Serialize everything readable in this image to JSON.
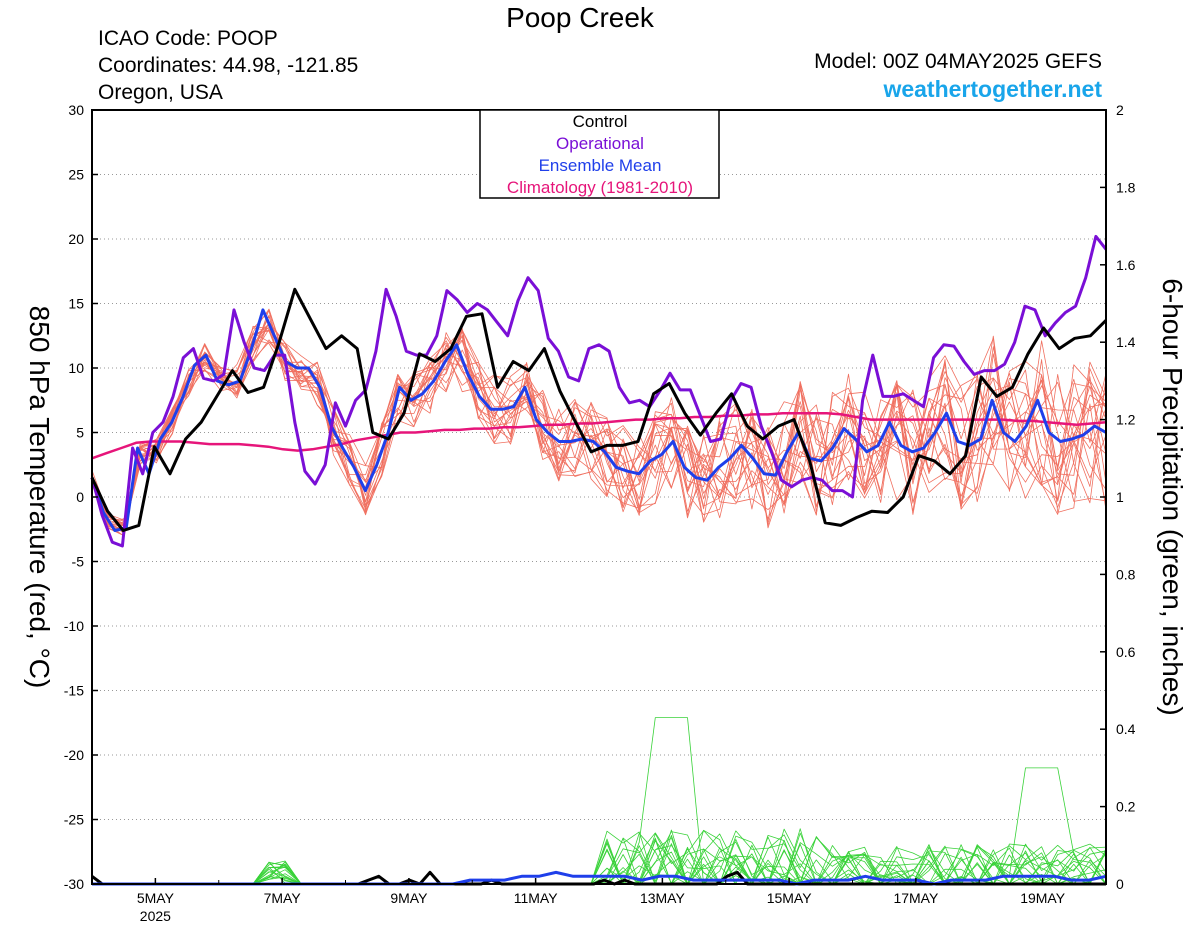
{
  "header": {
    "title": "Poop Creek",
    "icao": "ICAO Code: POOP",
    "coordinates": "Coordinates: 44.98, -121.85",
    "region": "Oregon, USA",
    "model": "Model: 00Z 04MAY2025 GEFS",
    "site": "weathertogether.net"
  },
  "chart_data": {
    "type": "line",
    "xlabel_year": "2025",
    "x_ticks": [
      "5MAY",
      "7MAY",
      "9MAY",
      "11MAY",
      "13MAY",
      "15MAY",
      "17MAY",
      "19MAY"
    ],
    "x_range_days": [
      4.0,
      20.0
    ],
    "left_axis": {
      "label": "850 hPa Temperature (red, °C)",
      "ylim": [
        -30,
        30
      ],
      "ticks": [
        30,
        25,
        20,
        15,
        10,
        5,
        0,
        -5,
        -10,
        -15,
        -20,
        -25,
        -30
      ]
    },
    "right_axis": {
      "label": "6-hour Precipitation (green, inches)",
      "ylim": [
        0,
        2
      ],
      "ticks": [
        "2",
        "1.8",
        "1.6",
        "1.4",
        "1.2",
        "1",
        "0.8",
        "0.6",
        "0.4",
        "0.2",
        "0"
      ]
    },
    "grid": "dotted horizontal",
    "legend": [
      "Control",
      "Operational",
      "Ensemble Mean",
      "Climatology (1981-2010)"
    ],
    "legend_colors": [
      "#000000",
      "#7a0fd6",
      "#1f3fea",
      "#e6157a"
    ],
    "legend_placement": "top-center",
    "series_temperature": [
      {
        "name": "Control",
        "color": "#000000",
        "values": [
          1.5,
          -1.1,
          -2.6,
          -2.2,
          3.9,
          1.8,
          4.5,
          5.8,
          7.8,
          9.8,
          8.1,
          8.5,
          12.0,
          16.1,
          13.8,
          11.5,
          12.5,
          11.5,
          5.0,
          4.5,
          6.5,
          11.1,
          10.5,
          11.5,
          14.0,
          14.2,
          8.5,
          10.5,
          9.8,
          11.5,
          8.2,
          5.8,
          3.5,
          4.0,
          4.0,
          4.3,
          8.0,
          8.8,
          6.5,
          4.8,
          6.5,
          8.0,
          5.5,
          4.5,
          5.5,
          6.0,
          2.8,
          -2.0,
          -2.2,
          -1.6,
          -1.1,
          -1.2,
          0.0,
          3.2,
          2.8,
          1.8,
          3.2,
          9.3,
          7.8,
          8.5,
          11.1,
          13.1,
          11.5,
          12.3,
          12.5,
          13.7
        ]
      },
      {
        "name": "Operational",
        "color": "#7a0fd6",
        "values": [
          1.5,
          -1.4,
          -3.5,
          -3.8,
          3.8,
          1.8,
          5.0,
          5.8,
          7.8,
          10.8,
          11.5,
          9.2,
          9.0,
          9.5,
          14.5,
          12.0,
          10.0,
          9.8,
          11.0,
          11.0,
          5.8,
          2.0,
          1.0,
          2.5,
          7.3,
          5.5,
          7.5,
          8.3,
          11.3,
          16.1,
          14.0,
          11.3,
          11.0,
          11.0,
          12.5,
          16.0,
          15.3,
          14.3,
          15.0,
          14.5,
          13.5,
          12.5,
          15.2,
          17.0,
          16.0,
          12.3,
          11.3,
          9.3,
          9.0,
          11.5,
          11.8,
          11.3,
          8.5,
          7.3,
          7.5,
          7.0,
          8.2,
          9.6,
          8.3,
          8.3,
          6.3,
          4.3,
          4.5,
          7.5,
          8.8,
          8.5,
          5.5,
          3.5,
          1.3,
          0.8,
          1.3,
          1.5,
          1.3,
          0.5,
          0.5,
          0.0,
          7.5,
          11.0,
          7.8,
          7.8,
          8.0,
          7.5,
          7.0,
          10.8,
          11.8,
          11.7,
          10.5,
          9.5,
          9.8,
          9.8,
          10.3,
          12.0,
          14.8,
          14.5,
          12.5,
          13.5,
          14.3,
          14.8,
          17.0,
          20.2,
          19.2
        ]
      },
      {
        "name": "Ensemble Mean",
        "color": "#1f3fea",
        "values": [
          1.5,
          -1.2,
          -2.6,
          -2.4,
          3.8,
          1.8,
          4.5,
          5.8,
          7.8,
          10.2,
          11.0,
          9.0,
          8.7,
          9.0,
          11.5,
          14.5,
          12.5,
          10.5,
          10.0,
          10.0,
          8.5,
          5.5,
          3.8,
          2.3,
          0.5,
          2.5,
          5.0,
          8.5,
          7.5,
          8.0,
          9.0,
          10.5,
          11.8,
          9.5,
          7.8,
          6.8,
          6.8,
          7.0,
          8.5,
          6.0,
          5.0,
          4.3,
          4.3,
          4.5,
          4.3,
          3.5,
          2.3,
          2.0,
          1.8,
          2.8,
          3.3,
          4.3,
          2.3,
          1.5,
          1.3,
          2.3,
          3.0,
          4.0,
          3.0,
          1.8,
          1.7,
          3.5,
          5.0,
          3.0,
          2.8,
          3.8,
          5.3,
          4.5,
          3.5,
          4.0,
          5.8,
          4.0,
          3.5,
          3.8,
          5.0,
          6.5,
          4.3,
          4.0,
          4.5,
          7.5,
          5.0,
          4.3,
          5.5,
          7.5,
          5.0,
          4.3,
          4.5,
          4.8,
          5.5,
          5.0
        ]
      },
      {
        "name": "Climatology (1981-2010)",
        "color": "#e6157a",
        "values": [
          3.0,
          3.4,
          3.8,
          4.2,
          4.3,
          4.3,
          4.3,
          4.2,
          4.1,
          4.1,
          4.1,
          4.0,
          3.9,
          3.7,
          3.6,
          3.7,
          3.9,
          4.1,
          4.4,
          4.6,
          4.8,
          5.0,
          5.0,
          5.1,
          5.2,
          5.2,
          5.3,
          5.3,
          5.4,
          5.4,
          5.5,
          5.6,
          5.6,
          5.7,
          5.7,
          5.8,
          5.9,
          6.0,
          6.0,
          6.1,
          6.1,
          6.2,
          6.2,
          6.3,
          6.3,
          6.4,
          6.4,
          6.5,
          6.5,
          6.5,
          6.5,
          6.4,
          6.2,
          6.0,
          6.0,
          6.0,
          6.0,
          6.0,
          6.0,
          6.0,
          6.0,
          6.0,
          6.0,
          5.9,
          5.9,
          5.8,
          5.7,
          5.6,
          5.7,
          5.8
        ]
      }
    ],
    "series_precipitation": [
      {
        "name": "Control",
        "color": "#000000",
        "values": [
          0.02,
          0.0,
          0.0,
          0.0,
          0.0,
          0.0,
          0.0,
          0.0,
          0.0,
          0.0,
          0.0,
          0.0,
          0.0,
          0.0,
          0.0,
          0.0,
          0.0,
          0.0,
          0.0,
          0.0,
          0.0,
          0.0,
          0.0,
          0.0,
          0.0,
          0.0,
          0.0,
          0.01,
          0.02,
          0.0,
          0.0,
          0.01,
          0.0,
          0.03,
          0.0,
          0.0,
          0.0,
          0.0,
          0.0,
          0.01,
          0.0,
          0.0,
          0.0,
          0.0,
          0.0,
          0.0,
          0.0,
          0.0,
          0.0,
          0.0,
          0.01,
          0.0,
          0.01,
          0.0,
          0.0,
          0.0,
          0.0,
          0.0,
          0.0,
          0.0,
          0.0,
          0.0,
          0.02,
          0.03,
          0.0,
          0.0,
          0.0,
          0.0,
          0.0,
          0.0,
          0.0,
          0.0,
          0.0,
          0.0,
          0.0,
          0.0,
          0.0,
          0.0,
          0.0,
          0.0,
          0.0,
          0.0,
          0.0,
          0.0,
          0.0,
          0.0,
          0.0,
          0.0,
          0.0,
          0.0,
          0.0,
          0.0,
          0.0,
          0.0,
          0.0,
          0.0,
          0.0,
          0.0,
          0.0,
          0.0
        ]
      },
      {
        "name": "Ensemble Mean",
        "color": "#1f3fea",
        "values": [
          0.0,
          0.0,
          0.0,
          0.0,
          0.0,
          0.0,
          0.0,
          0.0,
          0.0,
          0.0,
          0.0,
          0.0,
          0.0,
          0.0,
          0.0,
          0.0,
          0.0,
          0.0,
          0.0,
          0.0,
          0.0,
          0.0,
          0.01,
          0.01,
          0.01,
          0.02,
          0.02,
          0.03,
          0.02,
          0.02,
          0.02,
          0.02,
          0.01,
          0.02,
          0.02,
          0.01,
          0.01,
          0.01,
          0.01,
          0.01,
          0.01,
          0.0,
          0.01,
          0.01,
          0.01,
          0.02,
          0.01,
          0.01,
          0.01,
          0.0,
          0.01,
          0.01,
          0.01,
          0.02,
          0.02,
          0.02,
          0.02,
          0.01,
          0.01,
          0.02
        ]
      }
    ]
  }
}
